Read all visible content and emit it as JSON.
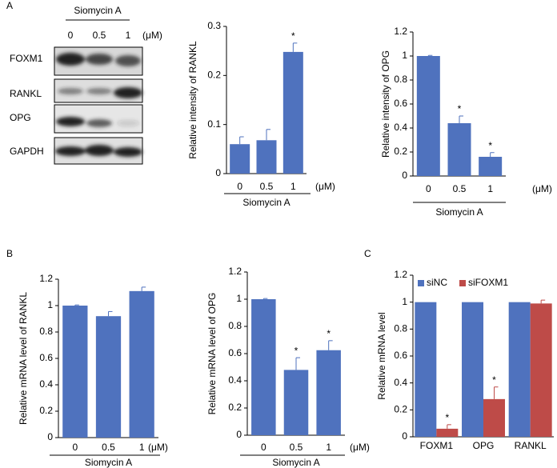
{
  "panels": [
    "A",
    "B",
    "C"
  ],
  "blot": {
    "treatment": "Siomycin A",
    "doses": [
      "0",
      "0.5",
      "1"
    ],
    "unit": "(μM)",
    "rows": [
      "FOXM1",
      "RANKL",
      "OPG",
      "GAPDH"
    ]
  },
  "chart_data": [
    {
      "type": "bar",
      "ylabel": "Relative intensity of RANKL",
      "xlabel": "Siomycin A",
      "unit": "(μM)",
      "categories": [
        "0",
        "0.5",
        "1"
      ],
      "values": [
        0.06,
        0.068,
        0.248
      ],
      "errors": [
        0.015,
        0.022,
        0.018
      ],
      "significance": [
        null,
        null,
        "*"
      ],
      "color": "#4f72be",
      "ylim": [
        0,
        0.3
      ],
      "yticks": [
        0,
        0.1,
        0.2,
        0.3
      ]
    },
    {
      "type": "bar",
      "ylabel": "Relative intensity of OPG",
      "xlabel": "Siomycin A",
      "unit": "(μM)",
      "categories": [
        "0",
        "0.5",
        "1"
      ],
      "values": [
        1.0,
        0.44,
        0.16
      ],
      "errors": [
        0.005,
        0.06,
        0.035
      ],
      "significance": [
        null,
        "*",
        "*"
      ],
      "color": "#4f72be",
      "ylim": [
        0,
        1.2
      ],
      "yticks": [
        0,
        0.2,
        0.4,
        0.6,
        0.8,
        1,
        1.2
      ]
    },
    {
      "type": "bar",
      "ylabel": "Relative mRNA level of RANKL",
      "xlabel": "Siomycin A",
      "unit": "(μM)",
      "categories": [
        "0",
        "0.5",
        "1"
      ],
      "values": [
        1.0,
        0.92,
        1.11
      ],
      "errors": [
        0.005,
        0.035,
        0.03
      ],
      "significance": [
        null,
        null,
        null
      ],
      "color": "#4f72be",
      "ylim": [
        0,
        1.2
      ],
      "yticks": [
        0,
        0.2,
        0.4,
        0.6,
        0.8,
        1,
        1.2
      ]
    },
    {
      "type": "bar",
      "ylabel": "Relative mRNA level of OPG",
      "xlabel": "Siomycin A",
      "unit": "(μM)",
      "categories": [
        "0",
        "0.5",
        "1"
      ],
      "values": [
        1.0,
        0.48,
        0.625
      ],
      "errors": [
        0.005,
        0.09,
        0.07
      ],
      "significance": [
        null,
        "*",
        "*"
      ],
      "color": "#4f72be",
      "ylim": [
        0,
        1.2
      ],
      "yticks": [
        0,
        0.2,
        0.4,
        0.6,
        0.8,
        1,
        1.2
      ]
    },
    {
      "type": "grouped-bar",
      "ylabel": "Relative mRNA level",
      "categories": [
        "FOXM1",
        "OPG",
        "RANKL"
      ],
      "series": [
        {
          "name": "siNC",
          "color": "#4f72be",
          "values": [
            1,
            1,
            1
          ],
          "errors": [
            0,
            0,
            0
          ],
          "significance": [
            null,
            null,
            null
          ]
        },
        {
          "name": "siFOXM1",
          "color": "#be4b48",
          "values": [
            0.06,
            0.28,
            0.99
          ],
          "errors": [
            0.03,
            0.09,
            0.025
          ],
          "significance": [
            "*",
            "*",
            null
          ]
        }
      ],
      "legend": "upper left",
      "ylim": [
        0,
        1.2
      ],
      "yticks": [
        0,
        0.2,
        0.4,
        0.6,
        0.8,
        1,
        1.2
      ]
    }
  ]
}
